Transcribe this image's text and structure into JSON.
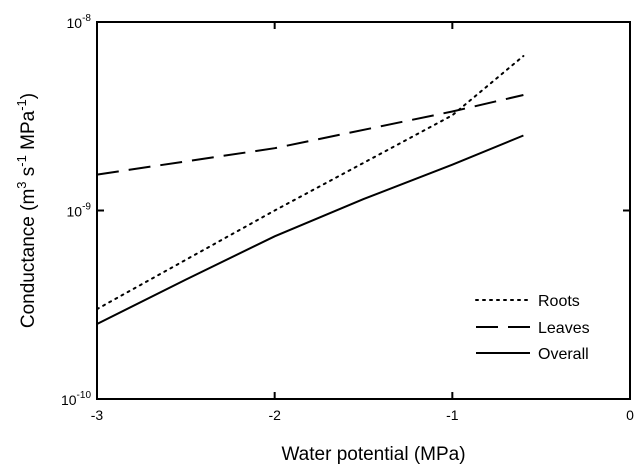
{
  "chart_data": {
    "type": "line",
    "xlabel": "Water potential (MPa)",
    "ylabel_parts": [
      "Conductance (m",
      "3",
      " s",
      "-1",
      " MPa",
      "-1",
      ")"
    ],
    "x_ticks": [
      "-3",
      "-2",
      "-1",
      "0"
    ],
    "y_tick_labels": [
      {
        "base": "10",
        "exp": "-8",
        "value": 1e-08
      },
      {
        "base": "10",
        "exp": "-9",
        "value": 1e-09
      },
      {
        "base": "10",
        "exp": "-10",
        "value": 1e-10
      }
    ],
    "xlim": [
      -3,
      0
    ],
    "ylim": [
      1e-10,
      1e-08
    ],
    "yscale": "log",
    "grid": false,
    "legend_position": "bottom-right",
    "series": [
      {
        "name": "Roots",
        "style": "dotted",
        "x": [
          -3.0,
          -2.0,
          -1.0,
          -0.6
        ],
        "y": [
          3e-10,
          1e-09,
          3.2e-09,
          6.6e-09
        ]
      },
      {
        "name": "Leaves",
        "style": "dashed",
        "x": [
          -3.0,
          -2.0,
          -1.0,
          -0.6
        ],
        "y": [
          1.55e-09,
          2.14e-09,
          3.35e-09,
          4.1e-09
        ]
      },
      {
        "name": "Overall",
        "style": "solid",
        "x": [
          -3.0,
          -2.5,
          -2.0,
          -1.5,
          -1.0,
          -0.6
        ],
        "y": [
          2.5e-10,
          4.3e-10,
          7.3e-10,
          1.15e-09,
          1.75e-09,
          2.5e-09
        ]
      }
    ]
  }
}
